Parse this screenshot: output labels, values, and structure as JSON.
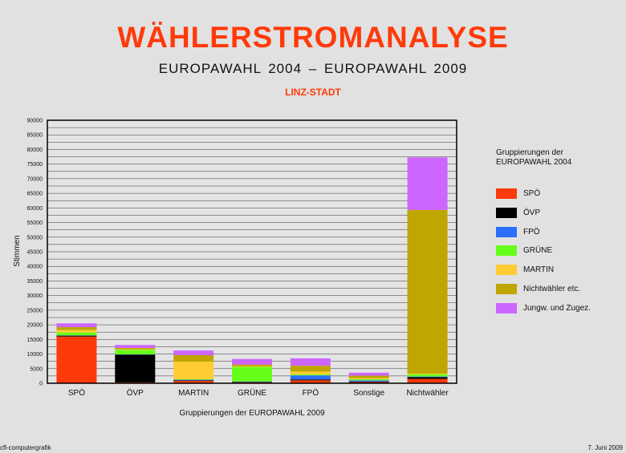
{
  "header": {
    "title": "WÄHLERSTROMANALYSE",
    "subtitle": "EUROPAWAHL  2004  –  EUROPAWAHL  2009",
    "region": "LINZ-STADT"
  },
  "footer": {
    "left": "cfl-computergrafik",
    "right": "7. Juni 2009"
  },
  "legend": {
    "title": "Gruppierungen der\nEUROPAWAHL  2004"
  },
  "chart_data": {
    "type": "bar",
    "stacked": true,
    "categories": [
      "SPÖ",
      "ÖVP",
      "MARTIN",
      "GRÜNE",
      "FPÖ",
      "Sonstige",
      "Nichtwähler"
    ],
    "xlabel": "Gruppierungen der EUROPAWAHL 2009",
    "ylabel": "Stimmen",
    "ylim": [
      0,
      90000
    ],
    "ytick_step": 2500,
    "ylabel_step": 5000,
    "grid": true,
    "legend_placement": "right",
    "series": [
      {
        "name": "SPÖ",
        "color": "#ff3a0a",
        "values": [
          16000,
          300,
          800,
          300,
          1000,
          400,
          1500
        ]
      },
      {
        "name": "ÖVP",
        "color": "#000000",
        "values": [
          300,
          9500,
          200,
          200,
          300,
          200,
          600
        ]
      },
      {
        "name": "FPÖ",
        "color": "#2b6fff",
        "values": [
          100,
          100,
          200,
          100,
          1400,
          400,
          200
        ]
      },
      {
        "name": "GRÜNE",
        "color": "#66ff1a",
        "values": [
          1000,
          1500,
          200,
          5000,
          300,
          400,
          800
        ]
      },
      {
        "name": "MARTIN",
        "color": "#ffcc33",
        "values": [
          800,
          200,
          6000,
          200,
          1000,
          400,
          200
        ]
      },
      {
        "name": "Nichtwähler etc.",
        "color": "#bfa600",
        "values": [
          1000,
          500,
          2200,
          600,
          2000,
          800,
          56000
        ]
      },
      {
        "name": "Jungw. und Zugez.",
        "color": "#cc66ff",
        "values": [
          1300,
          1000,
          1600,
          1900,
          2500,
          1000,
          18000
        ]
      }
    ]
  }
}
